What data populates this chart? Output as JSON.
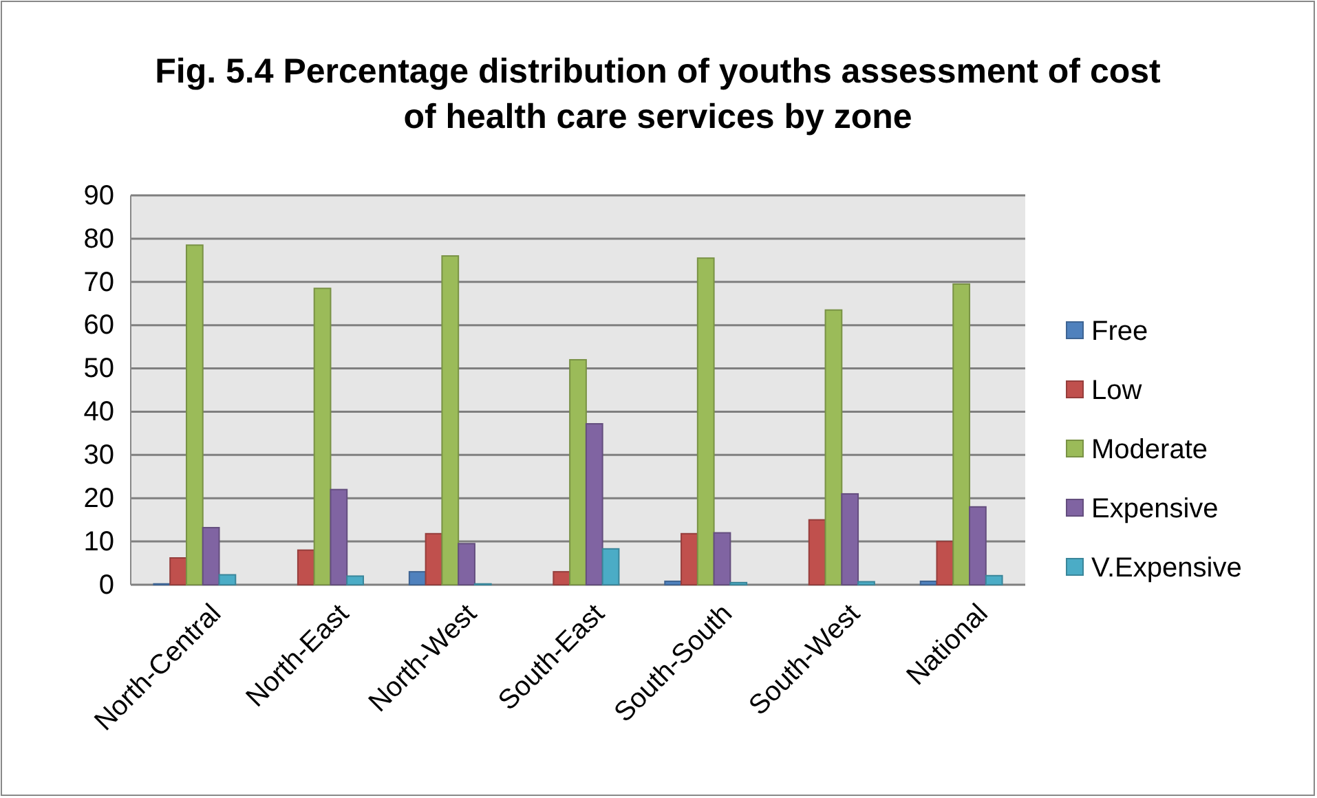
{
  "chart_data": {
    "type": "bar",
    "title": "Fig. 5.4 Percentage distribution of youths assessment of cost of health care services by zone",
    "categories": [
      "North-Central",
      "North-East",
      "North-West",
      "South-East",
      "South-South",
      "South-West",
      "National"
    ],
    "series": [
      {
        "name": "Free",
        "color": "#4f81bd",
        "values": [
          0.2,
          0,
          3,
          0,
          0.8,
          0,
          0.8
        ]
      },
      {
        "name": "Low",
        "color": "#c0504d",
        "values": [
          6.2,
          8,
          11.8,
          3,
          11.8,
          15,
          10
        ]
      },
      {
        "name": "Moderate",
        "color": "#9bbb59",
        "values": [
          78.5,
          68.5,
          76,
          52,
          75.5,
          63.5,
          69.5
        ]
      },
      {
        "name": "Expensive",
        "color": "#8064a2",
        "values": [
          13.2,
          22,
          9.5,
          37.2,
          12,
          21,
          18
        ]
      },
      {
        "name": "V.Expensive",
        "color": "#4bacc6",
        "values": [
          2.3,
          2,
          0.2,
          8.3,
          0.5,
          0.7,
          2.1
        ]
      }
    ],
    "ylim": [
      0,
      90
    ],
    "yticks": [
      0,
      10,
      20,
      30,
      40,
      50,
      60,
      70,
      80,
      90
    ],
    "grid": "y",
    "legend": "right"
  }
}
